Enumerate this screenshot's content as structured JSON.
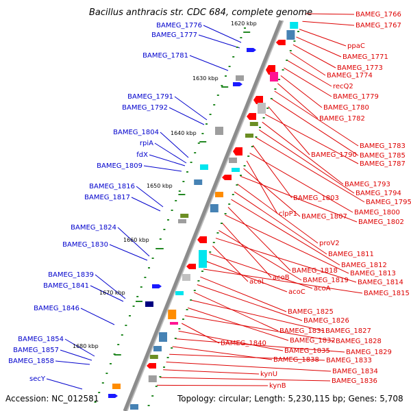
{
  "title": "Bacillus anthracis str. CDC 684, complete genome",
  "footer": {
    "accession": "Accession: NC_012581",
    "topology": "Topology: circular; Length: 5,230,115 bp; Genes: 5,708"
  },
  "colors": {
    "forward_label": "#0000cc",
    "reverse_label": "#dd0000",
    "backbone": "#8c8c8c",
    "tick": "#228822"
  },
  "ticks": [
    "1620 kbp",
    "1630 kbp",
    "1640 kbp",
    "1650 kbp",
    "1660 kbp",
    "1670 kbp",
    "1680 kbp"
  ],
  "left_labels": [
    "BAMEG_1776",
    "BAMEG_1777",
    "BAMEG_1781",
    "BAMEG_1791",
    "BAMEG_1792",
    "BAMEG_1804",
    "rpiA",
    "fdX",
    "BAMEG_1809",
    "BAMEG_1816",
    "BAMEG_1817",
    "BAMEG_1824",
    "BAMEG_1830",
    "BAMEG_1839",
    "BAMEG_1841",
    "BAMEG_1846",
    "BAMEG_1854",
    "BAMEG_1857",
    "BAMEG_1858",
    "secY"
  ],
  "right_labels": [
    "BAMEG_1766",
    "BAMEG_1767",
    "ppaC",
    "BAMEG_1771",
    "BAMEG_1773",
    "BAMEG_1774",
    "recQ2",
    "BAMEG_1779",
    "BAMEG_1780",
    "BAMEG_1782",
    "BAMEG_1783",
    "BAMEG_1785",
    "BAMEG_1790",
    "BAMEG_1787",
    "BAMEG_1793",
    "BAMEG_1794",
    "BAMEG_1795",
    "BAMEG_1803",
    "BAMEG_1800",
    "clpP1",
    "BAMEG_1807",
    "BAMEG_1802",
    "proV2",
    "BAMEG_1811",
    "BAMEG_1812",
    "BAMEG_1818",
    "BAMEG_1813",
    "acoB",
    "BAMEG_1819",
    "BAMEG_1814",
    "acoL",
    "acoA",
    "acoC",
    "BAMEG_1815",
    "BAMEG_1825",
    "BAMEG_1826",
    "BAMEG_1831",
    "BAMEG_1827",
    "BAMEG_1832",
    "BAMEG_1828",
    "BAMEG_1840",
    "BAMEG_1835",
    "BAMEG_1829",
    "BAMEG_1838",
    "BAMEG_1833",
    "BAMEG_1834",
    "kynU",
    "BAMEG_1836",
    "kynB"
  ]
}
